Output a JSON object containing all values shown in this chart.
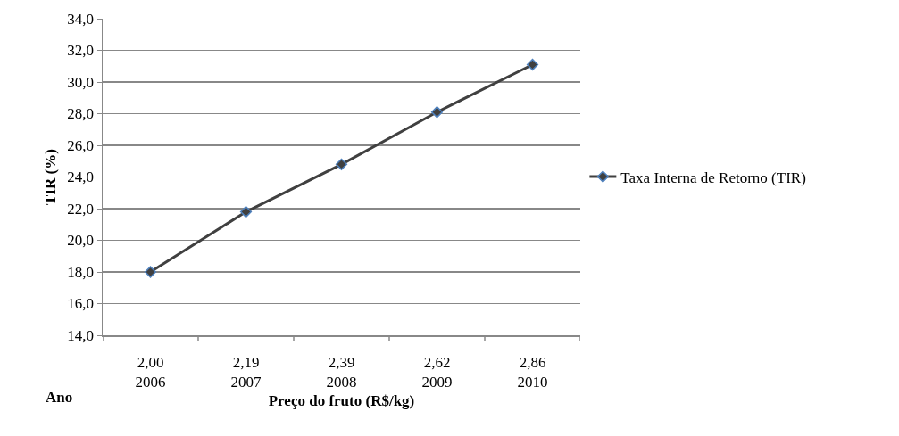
{
  "chart_data": {
    "type": "line",
    "xlabel": "Preço do fruto (R$/kg)",
    "ylabel": "TIR (%)",
    "categories": [
      "2,00\n2006",
      "2,19\n2007",
      "2,39\n2008",
      "2,62\n2009",
      "2,86\n2010"
    ],
    "series": [
      {
        "name": "Taxa Interna de Retorno (TIR)",
        "color": "#404040",
        "values": [
          18.0,
          21.8,
          24.8,
          28.1,
          31.1
        ]
      }
    ],
    "ylim": [
      14,
      34
    ],
    "yticks": [
      {
        "value": 14,
        "label": "14,0"
      },
      {
        "value": 16,
        "label": "16,0"
      },
      {
        "value": 18,
        "label": "18,0"
      },
      {
        "value": 20,
        "label": "20,0"
      },
      {
        "value": 22,
        "label": "22,0"
      },
      {
        "value": 24,
        "label": "24,0"
      },
      {
        "value": 26,
        "label": "26,0"
      },
      {
        "value": 28,
        "label": "28,0"
      },
      {
        "value": 30,
        "label": "30,0"
      },
      {
        "value": 32,
        "label": "32,0"
      },
      {
        "value": 34,
        "label": "34,0"
      }
    ],
    "annotations": [
      "Ano"
    ],
    "grid": "y",
    "legend": "right",
    "marker": "diamond",
    "line_style": "solid"
  }
}
